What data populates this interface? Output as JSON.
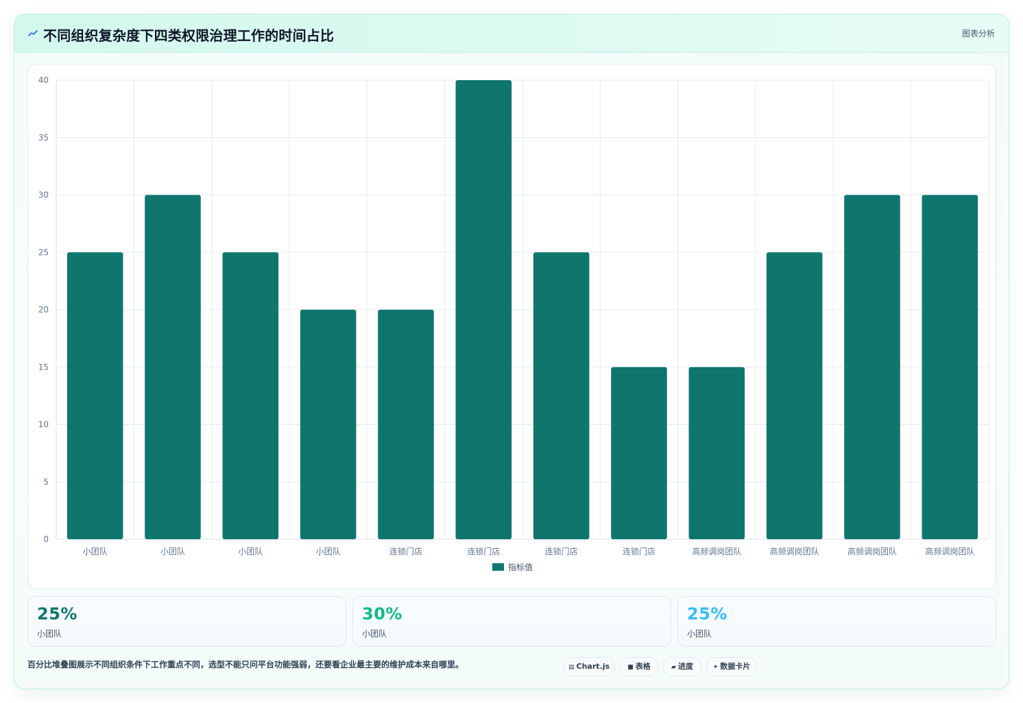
{
  "header": {
    "title": "不同组织复杂度下四类权限治理工作的时间占比",
    "icon": "chart-line-icon",
    "analysis_label": "图表分析"
  },
  "chart_data": {
    "type": "bar",
    "categories": [
      "小团队",
      "小团队",
      "小团队",
      "小团队",
      "连锁门店",
      "连锁门店",
      "连锁门店",
      "连锁门店",
      "高频调岗团队",
      "高频调岗团队",
      "高频调岗团队",
      "高频调岗团队"
    ],
    "series": [
      {
        "name": "指标值",
        "values": [
          25,
          30,
          25,
          20,
          20,
          40,
          25,
          15,
          15,
          25,
          30,
          30
        ]
      }
    ],
    "ylim": [
      0,
      40
    ],
    "yticks": [
      0,
      5,
      10,
      15,
      20,
      25,
      30,
      35,
      40
    ],
    "grid": true,
    "legend_position": "bottom",
    "bar_color": "#0f766e"
  },
  "stats": [
    {
      "value": "25%",
      "label": "小团队",
      "color": "#0f766e"
    },
    {
      "value": "30%",
      "label": "小团队",
      "color": "#10b981"
    },
    {
      "value": "25%",
      "label": "小团队",
      "color": "#38bdf8"
    }
  ],
  "footer": {
    "note": "百分比堆叠图展示不同组织条件下工作重点不同，选型不能只问平台功能强弱，还要看企业最主要的维护成本来自哪里。",
    "pills": [
      {
        "label": "Chart.js",
        "icon": "chart-icon",
        "glyph": "▤"
      },
      {
        "label": "表格",
        "icon": "table-icon",
        "glyph": "■"
      },
      {
        "label": "进度",
        "icon": "progress-icon",
        "glyph": "▰"
      },
      {
        "label": "数据卡片",
        "icon": "sparkle-icon",
        "glyph": "✦"
      }
    ]
  }
}
